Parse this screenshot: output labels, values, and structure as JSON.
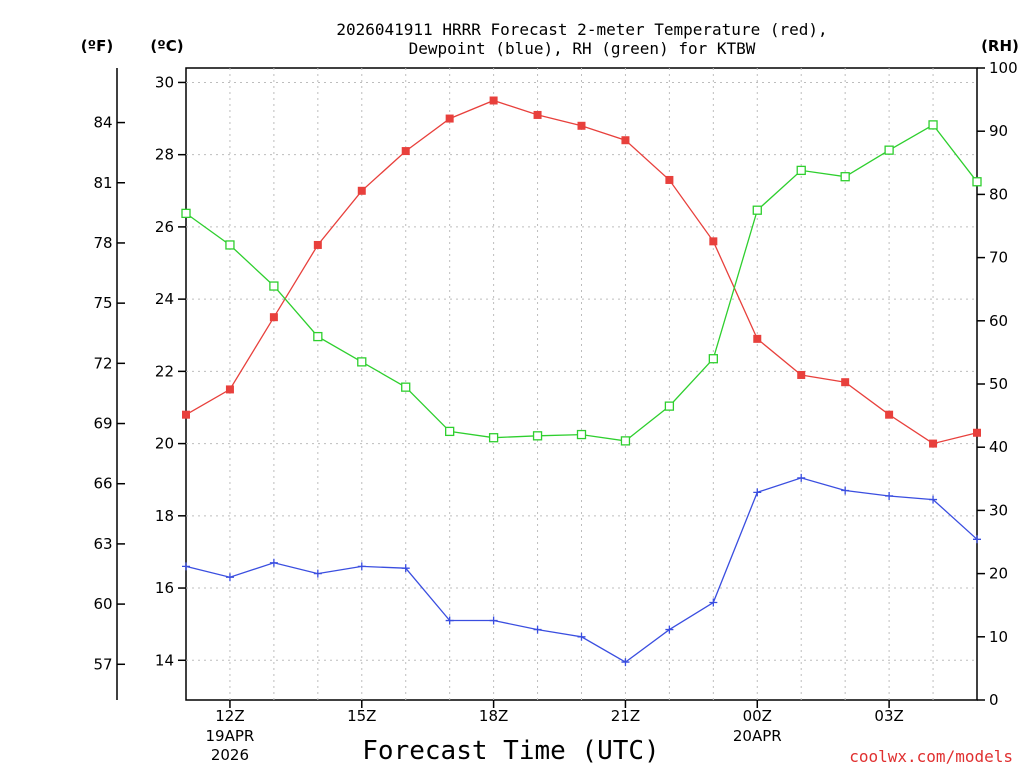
{
  "chart_data": {
    "type": "line",
    "title_line1": "2026041911 HRRR Forecast 2-meter Temperature (red),",
    "title_line2": "Dewpoint (blue), RH (green) for KTBW",
    "xlabel": "Forecast Time (UTC)",
    "credit": "coolwx.com/models",
    "grid": true,
    "x": [
      11,
      12,
      13,
      14,
      15,
      16,
      17,
      18,
      19,
      20,
      21,
      22,
      23,
      24,
      25,
      26,
      27,
      28,
      29
    ],
    "xlim": [
      11,
      29
    ],
    "x_ticks": [
      {
        "x": 12,
        "label": "12Z",
        "sub1": "19APR",
        "sub2": "2026"
      },
      {
        "x": 15,
        "label": "15Z",
        "sub1": "",
        "sub2": ""
      },
      {
        "x": 18,
        "label": "18Z",
        "sub1": "",
        "sub2": ""
      },
      {
        "x": 21,
        "label": "21Z",
        "sub1": "",
        "sub2": ""
      },
      {
        "x": 24,
        "label": "00Z",
        "sub1": "20APR",
        "sub2": ""
      },
      {
        "x": 27,
        "label": "03Z",
        "sub1": "",
        "sub2": ""
      }
    ],
    "y_left_c": {
      "unit": "(ºC)",
      "lim": [
        12.9,
        30.4
      ],
      "ticks": [
        "14",
        "16",
        "18",
        "20",
        "22",
        "24",
        "26",
        "28",
        "30"
      ]
    },
    "y_left_f": {
      "unit": "(ºF)",
      "ticks": [
        "57",
        "60",
        "63",
        "66",
        "69",
        "72",
        "75",
        "78",
        "81",
        "84"
      ]
    },
    "y_right_rh": {
      "unit": "(RH)",
      "lim": [
        0,
        100
      ],
      "ticks": [
        "0",
        "10",
        "20",
        "30",
        "40",
        "50",
        "60",
        "70",
        "80",
        "90",
        "100"
      ]
    },
    "series": [
      {
        "name": "2-meter Temperature",
        "axis": "C",
        "color": "#e8403c",
        "marker": "filled-square",
        "values": [
          20.8,
          21.5,
          23.5,
          25.5,
          27.0,
          28.1,
          29.0,
          29.5,
          29.1,
          28.8,
          28.4,
          27.3,
          25.6,
          22.9,
          21.9,
          21.7,
          20.8,
          20.0,
          20.3
        ]
      },
      {
        "name": "Dewpoint",
        "axis": "C",
        "color": "#3a4ee0",
        "marker": "plus",
        "values": [
          16.6,
          16.3,
          16.7,
          16.4,
          16.6,
          16.55,
          15.1,
          15.1,
          14.85,
          14.65,
          13.95,
          14.85,
          15.6,
          18.65,
          19.05,
          18.7,
          18.55,
          18.45,
          17.35
        ]
      },
      {
        "name": "RH",
        "axis": "RH",
        "color": "#2ecf2e",
        "marker": "open-square",
        "values": [
          77,
          72,
          65.5,
          57.5,
          53.5,
          49.5,
          42.5,
          41.5,
          41.8,
          42,
          41,
          46.5,
          54,
          77.5,
          83.8,
          82.8,
          87,
          91,
          82
        ]
      }
    ]
  }
}
